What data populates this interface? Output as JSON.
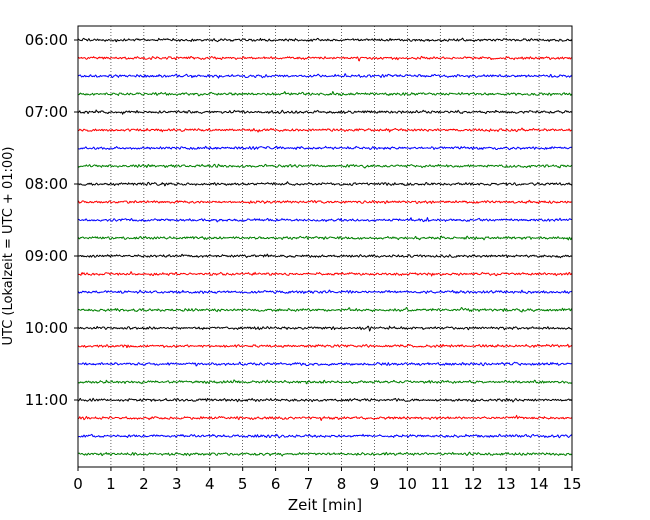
{
  "chart_data": {
    "type": "line",
    "title": "",
    "xlabel": "Zeit  [min]",
    "ylabel": "UTC (Lokalzeit = UTC + 01:00)",
    "xlim": [
      0,
      15
    ],
    "x_ticks": [
      0,
      1,
      2,
      3,
      4,
      5,
      6,
      7,
      8,
      9,
      10,
      11,
      12,
      13,
      14,
      15
    ],
    "y_ticks": [
      {
        "label": "06:00",
        "trace": 0
      },
      {
        "label": "07:00",
        "trace": 4
      },
      {
        "label": "08:00",
        "trace": 8
      },
      {
        "label": "09:00",
        "trace": 12
      },
      {
        "label": "10:00",
        "trace": 16
      },
      {
        "label": "11:00",
        "trace": 20
      }
    ],
    "grid": "vertical dotted",
    "trace_colors": [
      "#000000",
      "#ff0000",
      "#0000ff",
      "#008000"
    ],
    "traces": [
      {
        "start": "06:00",
        "color": "#000000"
      },
      {
        "start": "06:15",
        "color": "#ff0000"
      },
      {
        "start": "06:30",
        "color": "#0000ff"
      },
      {
        "start": "06:45",
        "color": "#008000"
      },
      {
        "start": "07:00",
        "color": "#000000"
      },
      {
        "start": "07:15",
        "color": "#ff0000"
      },
      {
        "start": "07:30",
        "color": "#0000ff"
      },
      {
        "start": "07:45",
        "color": "#008000"
      },
      {
        "start": "08:00",
        "color": "#000000"
      },
      {
        "start": "08:15",
        "color": "#ff0000"
      },
      {
        "start": "08:30",
        "color": "#0000ff"
      },
      {
        "start": "08:45",
        "color": "#008000"
      },
      {
        "start": "09:00",
        "color": "#000000"
      },
      {
        "start": "09:15",
        "color": "#ff0000"
      },
      {
        "start": "09:30",
        "color": "#0000ff"
      },
      {
        "start": "09:45",
        "color": "#008000"
      },
      {
        "start": "10:00",
        "color": "#000000"
      },
      {
        "start": "10:15",
        "color": "#ff0000"
      },
      {
        "start": "10:30",
        "color": "#0000ff"
      },
      {
        "start": "10:45",
        "color": "#008000"
      },
      {
        "start": "11:00",
        "color": "#000000"
      },
      {
        "start": "11:15",
        "color": "#ff0000"
      },
      {
        "start": "11:30",
        "color": "#0000ff"
      },
      {
        "start": "11:45",
        "color": "#008000"
      }
    ]
  }
}
